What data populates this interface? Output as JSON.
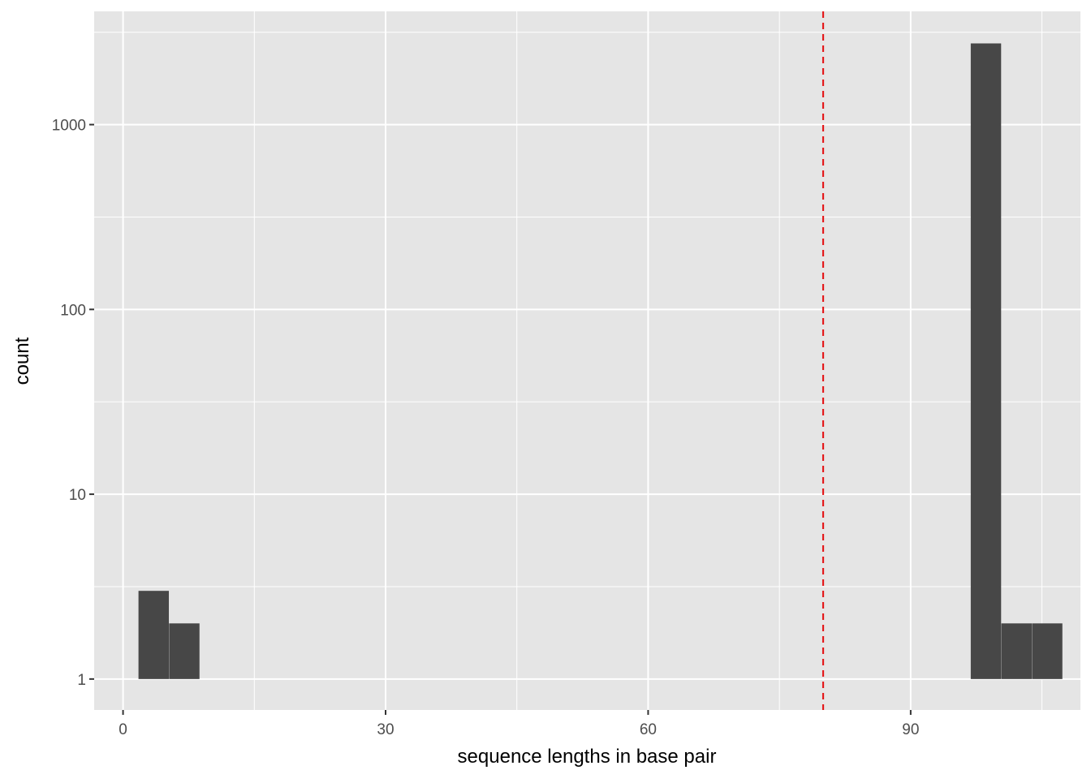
{
  "chart_data": {
    "type": "bar",
    "subtype": "histogram",
    "title": "",
    "xlabel": "sequence lengths in base pair",
    "ylabel": "count",
    "yscale": "log10",
    "xlim": [
      -3.3,
      109.4
    ],
    "ylim": [
      0.68,
      4100
    ],
    "xticks": [
      0,
      30,
      60,
      90
    ],
    "yticks": [
      1,
      10,
      100,
      1000
    ],
    "xtick_labels": [
      "0",
      "30",
      "60",
      "90"
    ],
    "ytick_labels": [
      "1",
      "10",
      "100",
      "1000"
    ],
    "grid": true,
    "bin_width": 3.47,
    "bins": [
      {
        "center": 3.5,
        "count": 3
      },
      {
        "center": 7.0,
        "count": 2
      },
      {
        "center": 98.6,
        "count": 2750
      },
      {
        "center": 102.1,
        "count": 2
      },
      {
        "center": 105.6,
        "count": 2
      }
    ],
    "vline": {
      "x": 80,
      "style": "dashed",
      "color": "#e41a1c"
    },
    "colors": {
      "panel": "#e5e5e5",
      "bar": "#474747",
      "grid": "#ffffff"
    }
  }
}
